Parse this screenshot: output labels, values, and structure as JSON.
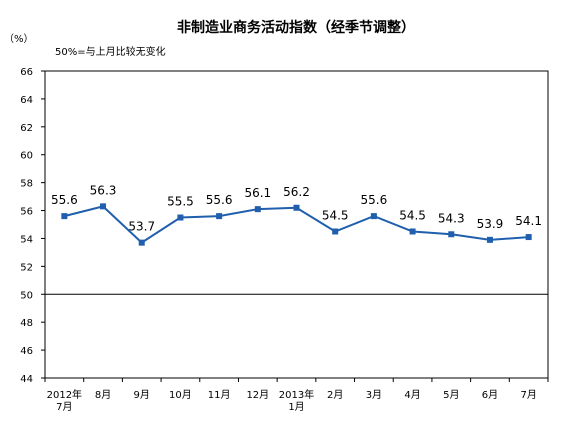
{
  "chart_data": {
    "type": "line",
    "title": "非制造业商务活动指数（经季节调整）",
    "ylabel": "（%）",
    "annotation": "50%=与上月比较无变化",
    "xlabel": "",
    "ylim": [
      44,
      66
    ],
    "yticks": [
      44,
      46,
      48,
      50,
      52,
      54,
      56,
      58,
      60,
      62,
      64,
      66
    ],
    "reference_value": 50,
    "grid": false,
    "categories": [
      [
        "2012年",
        "7月"
      ],
      [
        "8月"
      ],
      [
        "9月"
      ],
      [
        "10月"
      ],
      [
        "11月"
      ],
      [
        "12月"
      ],
      [
        "2013年",
        "1月"
      ],
      [
        "2月"
      ],
      [
        "3月"
      ],
      [
        "4月"
      ],
      [
        "5月"
      ],
      [
        "6月"
      ],
      [
        "7月"
      ]
    ],
    "series": [
      {
        "values": [
          55.6,
          56.3,
          53.7,
          55.5,
          55.6,
          56.1,
          56.2,
          54.5,
          55.6,
          54.5,
          54.3,
          53.9,
          54.1
        ],
        "labels": [
          "55.6",
          "56.3",
          "53.7",
          "55.5",
          "55.6",
          "56.1",
          "56.2",
          "54.5",
          "55.6",
          "54.5",
          "54.3",
          "53.9",
          "54.1"
        ],
        "color": "#1f5fad"
      }
    ]
  }
}
